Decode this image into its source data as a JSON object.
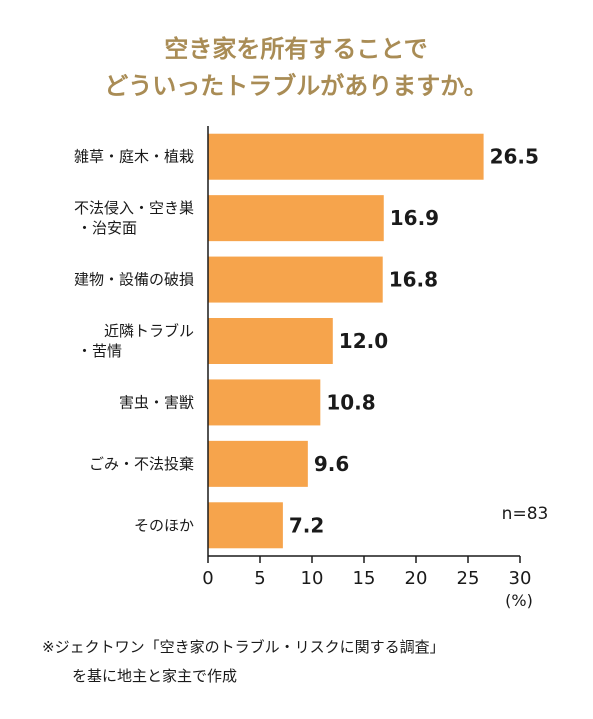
{
  "chart_data": {
    "type": "bar",
    "orientation": "horizontal",
    "title_lines": [
      "空き家を所有することで",
      "どういったトラブルがありますか。"
    ],
    "categories": [
      [
        "雑草・庭木・植栽"
      ],
      [
        "不法侵入・空き巣",
        "・治安面"
      ],
      [
        "建物・設備の破損"
      ],
      [
        "近隣トラブル",
        "・苦情"
      ],
      [
        "害虫・害獣"
      ],
      [
        "ごみ・不法投棄"
      ],
      [
        "そのほか"
      ]
    ],
    "values": [
      26.5,
      16.9,
      16.8,
      12.0,
      10.8,
      9.6,
      7.2
    ],
    "value_labels": [
      "26.5",
      "16.9",
      "16.8",
      "12.0",
      "10.8",
      "9.6",
      "7.2"
    ],
    "xlim": [
      0,
      30
    ],
    "x_ticks": [
      "0",
      "5",
      "10",
      "15",
      "20",
      "25",
      "30"
    ],
    "unit_label": "(%)",
    "sample_note": "n=83",
    "bar_color": "#f6a44c",
    "title_color": "#a98c55",
    "grid": false
  },
  "footnote": {
    "line1": "※ジェクトワン「空き家のトラブル・リスクに関する調査」",
    "line2": "を基に地主と家主で作成"
  }
}
